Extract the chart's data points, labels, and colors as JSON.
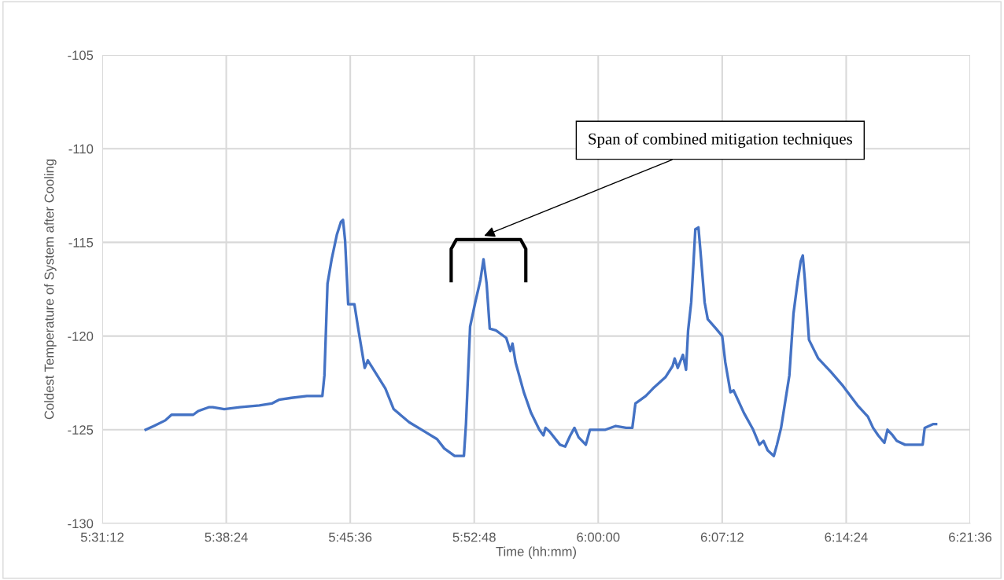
{
  "chart_data": {
    "type": "line",
    "xlabel": "Time (hh:mm)",
    "ylabel": "Coldest Temperature of System after Cooling",
    "x": [
      5.562,
      5.57,
      5.581,
      5.587,
      5.592,
      5.608,
      5.613,
      5.623,
      5.627,
      5.638,
      5.653,
      5.672,
      5.684,
      5.691,
      5.703,
      5.718,
      5.726,
      5.733,
      5.735,
      5.738,
      5.742,
      5.747,
      5.751,
      5.753,
      5.755,
      5.758,
      5.764,
      5.768,
      5.774,
      5.777,
      5.785,
      5.794,
      5.802,
      5.817,
      5.832,
      5.844,
      5.851,
      5.861,
      5.87,
      5.872,
      5.876,
      5.881,
      5.886,
      5.889,
      5.892,
      5.895,
      5.901,
      5.911,
      5.915,
      5.917,
      5.92,
      5.928,
      5.935,
      5.943,
      5.947,
      5.949,
      5.953,
      5.963,
      5.968,
      5.973,
      5.977,
      5.981,
      5.988,
      5.992,
      6.007,
      6.017,
      6.027,
      6.033,
      6.036,
      6.046,
      6.053,
      6.065,
      6.072,
      6.074,
      6.077,
      6.082,
      6.085,
      6.087,
      6.09,
      6.092,
      6.094,
      6.097,
      6.099,
      6.103,
      6.106,
      6.114,
      6.12,
      6.123,
      6.128,
      6.131,
      6.141,
      6.15,
      6.156,
      6.16,
      6.164,
      6.17,
      6.173,
      6.177,
      6.185,
      6.189,
      6.193,
      6.196,
      6.198,
      6.2,
      6.204,
      6.213,
      6.225,
      6.236,
      6.251,
      6.261,
      6.266,
      6.271,
      6.277,
      6.28,
      6.285,
      6.289,
      6.297,
      6.302,
      6.314,
      6.316,
      6.324,
      6.327
    ],
    "series": [
      {
        "color": "#4472c4",
        "values": [
          -125.0,
          -124.8,
          -124.5,
          -124.2,
          -124.2,
          -124.2,
          -124.0,
          -123.8,
          -123.8,
          -123.9,
          -123.8,
          -123.7,
          -123.6,
          -123.4,
          -123.3,
          -123.2,
          -123.2,
          -123.2,
          -122.1,
          -117.2,
          -115.9,
          -114.6,
          -113.9,
          -113.8,
          -114.9,
          -118.3,
          -118.3,
          -119.7,
          -121.7,
          -121.3,
          -122.0,
          -122.8,
          -123.9,
          -124.6,
          -125.1,
          -125.5,
          -126.0,
          -126.4,
          -126.4,
          -124.7,
          -119.5,
          -118.2,
          -117.0,
          -115.9,
          -117.2,
          -119.6,
          -119.7,
          -120.1,
          -120.8,
          -120.4,
          -121.4,
          -123.0,
          -124.1,
          -125.0,
          -125.3,
          -124.9,
          -125.1,
          -125.8,
          -125.9,
          -125.3,
          -124.9,
          -125.4,
          -125.8,
          -125.0,
          -125.0,
          -124.8,
          -124.9,
          -124.9,
          -123.6,
          -123.2,
          -122.8,
          -122.2,
          -121.6,
          -121.2,
          -121.7,
          -121.0,
          -121.8,
          -119.7,
          -118.2,
          -116.3,
          -114.3,
          -114.2,
          -115.5,
          -118.2,
          -119.1,
          -119.6,
          -120.0,
          -121.4,
          -123.0,
          -122.9,
          -124.1,
          -125.0,
          -125.8,
          -125.6,
          -126.1,
          -126.4,
          -125.8,
          -124.9,
          -122.1,
          -118.8,
          -117.1,
          -116.0,
          -115.7,
          -117.0,
          -120.2,
          -121.2,
          -121.9,
          -122.6,
          -123.7,
          -124.3,
          -124.9,
          -125.3,
          -125.7,
          -125.0,
          -125.3,
          -125.6,
          -125.8,
          -125.8,
          -125.8,
          -124.9,
          -124.7,
          -124.7
        ]
      }
    ],
    "xlim": [
      5.52,
      6.36
    ],
    "xticks": [
      {
        "value": 5.52,
        "label": "5:31:12"
      },
      {
        "value": 5.64,
        "label": "5:38:24"
      },
      {
        "value": 5.76,
        "label": "5:45:36"
      },
      {
        "value": 5.88,
        "label": "5:52:48"
      },
      {
        "value": 6.0,
        "label": "6:00:00"
      },
      {
        "value": 6.12,
        "label": "6:07:12"
      },
      {
        "value": 6.24,
        "label": "6:14:24"
      },
      {
        "value": 6.36,
        "label": "6:21:36"
      }
    ],
    "ylim": [
      -130,
      -105
    ],
    "yticks": [
      -130,
      -125,
      -120,
      -115,
      -110,
      -105
    ],
    "grid": true,
    "legend": false,
    "marker": "none",
    "line_style": "solid",
    "annotations": [
      "Span of combined mitigation techniques"
    ]
  }
}
